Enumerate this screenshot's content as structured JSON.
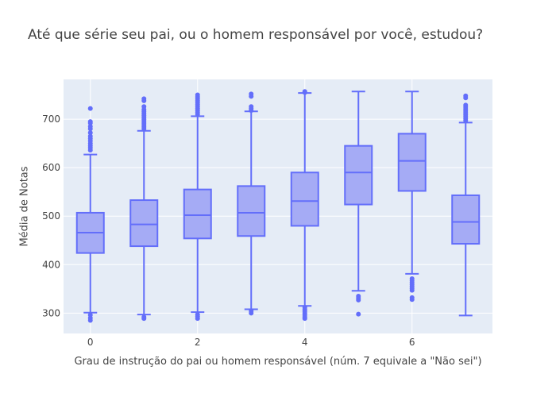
{
  "chart_data": {
    "type": "box",
    "title": "Até que série seu pai, ou o homem responsável por você, estudou?",
    "xlabel": "Grau de instrução do pai ou homem responsável (núm. 7 equivale a \"Não sei\")",
    "ylabel": "Média de Notas",
    "x_ticks": [
      0,
      2,
      4,
      6
    ],
    "y_ticks": [
      300,
      400,
      500,
      600,
      700
    ],
    "xlim": [
      -0.5,
      7.5
    ],
    "ylim": [
      258,
      782
    ],
    "grid": true,
    "colors": {
      "box_line": "#636efa",
      "box_fill": "#a5abf5",
      "plot_bg": "#e5ecf6",
      "grid": "#ffffff",
      "text": "#444444"
    },
    "boxes": [
      {
        "x": 0,
        "q1": 424,
        "median": 466,
        "q3": 507,
        "lower_fence": 301,
        "upper_fence": 627,
        "outliers": [
          285,
          290,
          296,
          636,
          641,
          645,
          650,
          655,
          660,
          665,
          672,
          680,
          685,
          692,
          695,
          722
        ]
      },
      {
        "x": 1,
        "q1": 438,
        "median": 483,
        "q3": 533,
        "lower_fence": 297,
        "upper_fence": 676,
        "outliers": [
          289,
          292,
          680,
          684,
          688,
          692,
          696,
          700,
          704,
          708,
          712,
          716,
          720,
          726,
          738,
          742
        ]
      },
      {
        "x": 2,
        "q1": 454,
        "median": 502,
        "q3": 555,
        "lower_fence": 302,
        "upper_fence": 706,
        "outliers": [
          289,
          293,
          297,
          710,
          714,
          718,
          722,
          726,
          730,
          734,
          738,
          742,
          746,
          750
        ]
      },
      {
        "x": 3,
        "q1": 459,
        "median": 507,
        "q3": 562,
        "lower_fence": 308,
        "upper_fence": 716,
        "outliers": [
          300,
          304,
          718,
          722,
          726,
          747,
          752
        ]
      },
      {
        "x": 4,
        "q1": 480,
        "median": 531,
        "q3": 590,
        "lower_fence": 315,
        "upper_fence": 754,
        "outliers": [
          289,
          292,
          296,
          300,
          304,
          308,
          312,
          755,
          757
        ]
      },
      {
        "x": 5,
        "q1": 524,
        "median": 590,
        "q3": 645,
        "lower_fence": 346,
        "upper_fence": 757,
        "outliers": [
          298,
          327,
          331,
          335
        ]
      },
      {
        "x": 6,
        "q1": 552,
        "median": 614,
        "q3": 670,
        "lower_fence": 381,
        "upper_fence": 757,
        "outliers": [
          328,
          332,
          347,
          351,
          355,
          359,
          363,
          367,
          371
        ]
      },
      {
        "x": 7,
        "q1": 443,
        "median": 488,
        "q3": 543,
        "lower_fence": 295,
        "upper_fence": 693,
        "outliers": [
          697,
          701,
          705,
          709,
          713,
          717,
          721,
          725,
          729,
          744,
          748
        ]
      }
    ]
  }
}
